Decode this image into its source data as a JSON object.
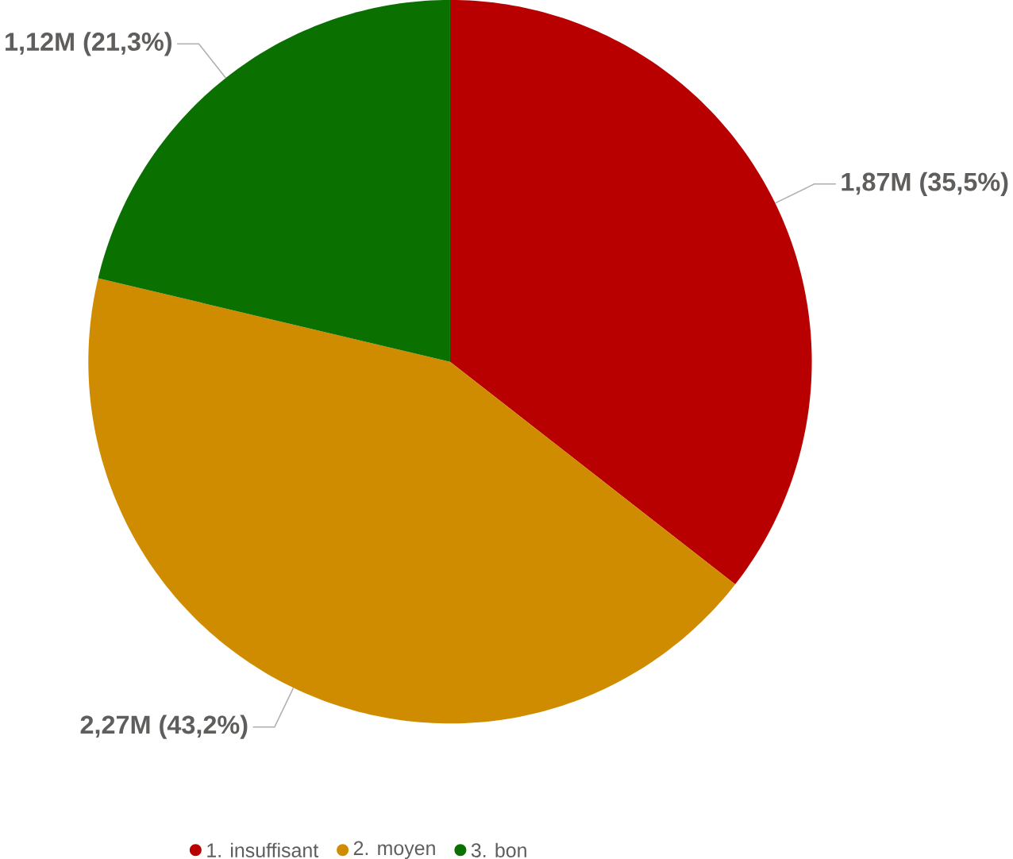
{
  "chart_data": {
    "type": "pie",
    "categories": [
      "1. insuffisant",
      "2. moyen",
      "3. bon"
    ],
    "values": [
      1870000,
      2270000,
      1120000
    ],
    "colors": [
      "#b80000",
      "#d08c00",
      "#0a7000"
    ],
    "value_labels": [
      "1,87M (35,5%)",
      "2,27M (43,2%)",
      "1,12M (21,3%)"
    ],
    "legend": "bottom"
  }
}
